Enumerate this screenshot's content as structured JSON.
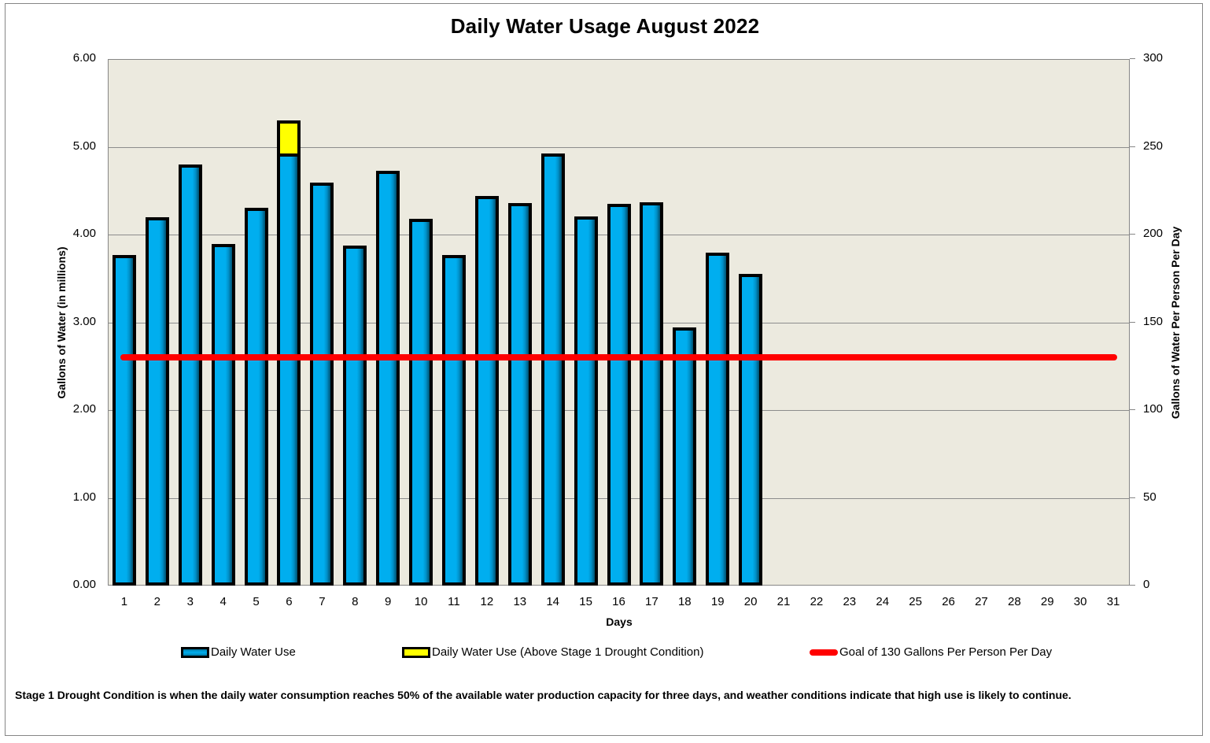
{
  "title": "Daily Water Usage August 2022",
  "axes": {
    "left_label": "Gallons of Water (in millions)",
    "right_label": "Gallons of Water Per Person Per Day",
    "x_label": "Days",
    "left_ticks": [
      "0.00",
      "1.00",
      "2.00",
      "3.00",
      "4.00",
      "5.00",
      "6.00"
    ],
    "right_ticks": [
      "0",
      "50",
      "100",
      "150",
      "200",
      "250",
      "300"
    ],
    "x_ticks": [
      "1",
      "2",
      "3",
      "4",
      "5",
      "6",
      "7",
      "8",
      "9",
      "10",
      "11",
      "12",
      "13",
      "14",
      "15",
      "16",
      "17",
      "18",
      "19",
      "20",
      "21",
      "22",
      "23",
      "24",
      "25",
      "26",
      "27",
      "28",
      "29",
      "30",
      "31"
    ]
  },
  "legend": {
    "items": [
      {
        "label": "Daily Water Use",
        "swatch": "blue"
      },
      {
        "label": "Daily Water Use (Above Stage 1 Drought Condition)",
        "swatch": "yellow"
      },
      {
        "label": "Goal of 130 Gallons Per Person Per Day",
        "swatch": "red"
      }
    ]
  },
  "footnote": "Stage 1 Drought Condition is when the daily water consumption reaches 50% of the available water production capacity for three days,  and weather conditions indicate that high use is likely to continue.",
  "colors": {
    "bar": "#00AEEF",
    "bar_above_stage1": "#FFFF00",
    "goal_line": "#FF0000",
    "plot_background": "#ECEADF",
    "gridline": "#8C8C8C"
  },
  "chart_data": {
    "type": "bar",
    "title": "Daily Water Usage August 2022",
    "xlabel": "Days",
    "ylabel": "Gallons of Water (in millions)",
    "y2label": "Gallons of Water Per Person Per Day",
    "ylim": [
      0,
      6
    ],
    "y2lim": [
      0,
      300
    ],
    "grid": true,
    "legend_position": "bottom",
    "stacked": true,
    "categories": [
      1,
      2,
      3,
      4,
      5,
      6,
      7,
      8,
      9,
      10,
      11,
      12,
      13,
      14,
      15,
      16,
      17,
      18,
      19,
      20,
      21,
      22,
      23,
      24,
      25,
      26,
      27,
      28,
      29,
      30,
      31
    ],
    "series": [
      {
        "name": "Daily Water Use",
        "type": "bar",
        "axis": "left",
        "values": [
          3.75,
          4.18,
          4.78,
          3.87,
          4.29,
          4.91,
          4.57,
          3.86,
          4.71,
          4.16,
          3.75,
          4.42,
          4.34,
          4.91,
          4.19,
          4.33,
          4.35,
          2.92,
          3.78,
          3.53,
          null,
          null,
          null,
          null,
          null,
          null,
          null,
          null,
          null,
          null,
          null
        ]
      },
      {
        "name": "Daily Water Use (Above Stage 1 Drought Condition)",
        "type": "bar",
        "axis": "left",
        "values": [
          0,
          0,
          0,
          0,
          0,
          0.37,
          0,
          0,
          0,
          0,
          0,
          0,
          0,
          0,
          0,
          0,
          0,
          0,
          0,
          0,
          null,
          null,
          null,
          null,
          null,
          null,
          null,
          null,
          null,
          null,
          null
        ]
      },
      {
        "name": "Goal of 130 Gallons Per Person Per Day",
        "type": "line",
        "axis": "right",
        "values": [
          130,
          130,
          130,
          130,
          130,
          130,
          130,
          130,
          130,
          130,
          130,
          130,
          130,
          130,
          130,
          130,
          130,
          130,
          130,
          130,
          130,
          130,
          130,
          130,
          130,
          130,
          130,
          130,
          130,
          130,
          130
        ]
      }
    ]
  }
}
